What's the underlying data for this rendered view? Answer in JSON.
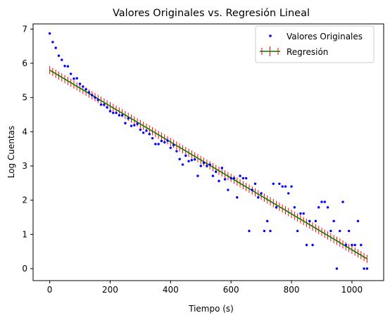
{
  "chart_data": {
    "type": "scatter",
    "title": "Valores Originales vs. Regresión Lineal",
    "xlabel": "Tiempo (s)",
    "ylabel": "Log Cuentas",
    "xlim": [
      -55,
      1105
    ],
    "ylim": [
      -0.35,
      7.15
    ],
    "xticks": [
      0,
      200,
      400,
      600,
      800,
      1000
    ],
    "yticks": [
      0,
      1,
      2,
      3,
      4,
      5,
      6,
      7
    ],
    "legend_position": "top-right",
    "grid": false,
    "series": [
      {
        "name": "Valores Originales",
        "kind": "scatter",
        "color": "#0000ff",
        "x": [
          0,
          10,
          20,
          30,
          40,
          50,
          60,
          70,
          80,
          90,
          100,
          110,
          120,
          130,
          140,
          150,
          160,
          170,
          180,
          190,
          200,
          210,
          220,
          230,
          240,
          250,
          260,
          270,
          280,
          290,
          300,
          310,
          320,
          330,
          340,
          350,
          360,
          370,
          380,
          390,
          400,
          410,
          420,
          430,
          440,
          450,
          460,
          470,
          480,
          490,
          500,
          510,
          520,
          530,
          540,
          550,
          560,
          570,
          580,
          590,
          600,
          610,
          620,
          630,
          640,
          650,
          660,
          670,
          680,
          690,
          700,
          710,
          720,
          730,
          740,
          750,
          760,
          770,
          780,
          790,
          800,
          810,
          820,
          830,
          840,
          850,
          860,
          870,
          880,
          890,
          900,
          910,
          920,
          930,
          940,
          950,
          960,
          970,
          980,
          990,
          1000,
          1010,
          1020,
          1030,
          1040,
          1050
        ],
        "y": [
          6.87,
          6.62,
          6.45,
          6.22,
          6.1,
          5.92,
          5.91,
          5.69,
          5.55,
          5.56,
          5.4,
          5.32,
          5.24,
          5.15,
          5.07,
          5.0,
          4.93,
          4.79,
          4.79,
          4.71,
          4.6,
          4.55,
          4.55,
          4.48,
          4.48,
          4.25,
          4.39,
          4.17,
          4.19,
          4.23,
          4.06,
          3.97,
          4.03,
          3.93,
          3.81,
          3.64,
          3.64,
          3.73,
          3.69,
          3.74,
          3.53,
          3.61,
          3.43,
          3.2,
          3.04,
          3.3,
          3.14,
          3.17,
          3.19,
          2.71,
          3.0,
          3.09,
          3.0,
          3.04,
          2.71,
          2.83,
          2.56,
          2.94,
          2.61,
          2.3,
          2.64,
          2.64,
          2.08,
          2.71,
          2.64,
          2.64,
          1.1,
          2.3,
          2.48,
          2.08,
          2.2,
          1.1,
          1.39,
          1.1,
          2.48,
          1.79,
          2.48,
          2.4,
          2.4,
          2.2,
          2.4,
          1.79,
          1.1,
          1.61,
          1.61,
          0.69,
          1.39,
          0.69,
          1.39,
          1.79,
          1.95,
          1.95,
          1.79,
          1.1,
          1.39,
          0.0,
          1.1,
          1.95,
          0.69,
          1.1,
          0.69,
          0.69,
          1.39,
          0.69,
          0.0,
          0.0
        ]
      },
      {
        "name": "Regresión",
        "kind": "line_with_errorbars",
        "color": "#008000",
        "errorbar_color": "#ff0000",
        "x_start": 0,
        "x_end": 1050,
        "x_step": 10,
        "slope": -0.00525,
        "intercept": 5.8,
        "error": 0.12
      }
    ]
  }
}
